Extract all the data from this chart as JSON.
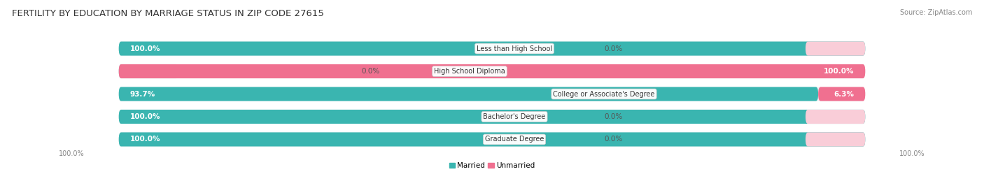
{
  "title": "FERTILITY BY EDUCATION BY MARRIAGE STATUS IN ZIP CODE 27615",
  "source": "Source: ZipAtlas.com",
  "categories": [
    "Less than High School",
    "High School Diploma",
    "College or Associate's Degree",
    "Bachelor's Degree",
    "Graduate Degree"
  ],
  "married": [
    100.0,
    0.0,
    93.7,
    100.0,
    100.0
  ],
  "unmarried": [
    0.0,
    100.0,
    6.3,
    0.0,
    0.0
  ],
  "married_color": "#3ab5b0",
  "unmarried_color": "#f07090",
  "married_light_color": "#b0dede",
  "unmarried_light_color": "#f9cdd8",
  "bg_pill_color": "#e8e8ec",
  "title_fontsize": 9.5,
  "source_fontsize": 7,
  "bar_label_fontsize": 7.5,
  "category_fontsize": 7,
  "legend_fontsize": 7.5,
  "axis_label_fontsize": 7,
  "background_color": "#ffffff"
}
